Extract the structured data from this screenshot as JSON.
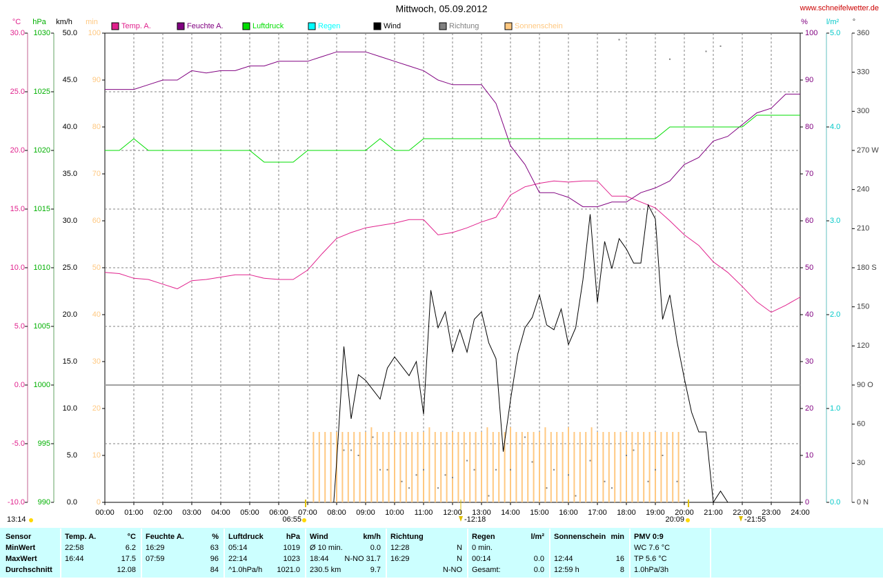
{
  "chart_data": {
    "type": "line",
    "title": "Mittwoch, 05.09.2012",
    "source": "www.schneifelwetter.de",
    "legend": "top",
    "grid": true,
    "xlim": [
      0,
      24
    ],
    "xticks": [
      {
        "value": 0,
        "label": "00:00"
      },
      {
        "value": 1,
        "label": "01:00"
      },
      {
        "value": 2,
        "label": "02:00"
      },
      {
        "value": 3,
        "label": "03:00"
      },
      {
        "value": 4,
        "label": "04:00"
      },
      {
        "value": 5,
        "label": "05:00"
      },
      {
        "value": 6,
        "label": "06:00"
      },
      {
        "value": 7,
        "label": "07:00"
      },
      {
        "value": 8,
        "label": "08:00"
      },
      {
        "value": 9,
        "label": "09:00"
      },
      {
        "value": 10,
        "label": "10:00"
      },
      {
        "value": 11,
        "label": "11:00"
      },
      {
        "value": 12,
        "label": "12:00"
      },
      {
        "value": 13,
        "label": "13:00"
      },
      {
        "value": 14,
        "label": "14:00"
      },
      {
        "value": 15,
        "label": "15:00"
      },
      {
        "value": 16,
        "label": "16:00"
      },
      {
        "value": 17,
        "label": "17:00"
      },
      {
        "value": 18,
        "label": "18:00"
      },
      {
        "value": 19,
        "label": "19:00"
      },
      {
        "value": 20,
        "label": "20:00"
      },
      {
        "value": 21,
        "label": "21:00"
      },
      {
        "value": 22,
        "label": "22:00"
      },
      {
        "value": 23,
        "label": "23:00"
      },
      {
        "value": 24,
        "label": "24:00"
      }
    ],
    "axes": [
      {
        "unit": "°C",
        "color": "#e0208c",
        "lim": [
          -10,
          30
        ],
        "ticks": [
          {
            "value": -10,
            "label": "-10.0"
          },
          {
            "value": -5,
            "label": "-5.0"
          },
          {
            "value": 0,
            "label": "0.0"
          },
          {
            "value": 5,
            "label": "5.0"
          },
          {
            "value": 10,
            "label": "10.0"
          },
          {
            "value": 15,
            "label": "15.0"
          },
          {
            "value": 20,
            "label": "20.0"
          },
          {
            "value": 25,
            "label": "25.0"
          },
          {
            "value": 30,
            "label": "30.0"
          }
        ]
      },
      {
        "unit": "hPa",
        "color": "#00b000",
        "lim": [
          990,
          1030
        ],
        "ticks": [
          990,
          995,
          1000,
          1005,
          1010,
          1015,
          1020,
          1025,
          1030
        ]
      },
      {
        "unit": "km/h",
        "color": "#000000",
        "lim": [
          0,
          50
        ],
        "ticks": [
          {
            "value": 0,
            "label": "0.0"
          },
          {
            "value": 5,
            "label": "5.0"
          },
          {
            "value": 10,
            "label": "10.0"
          },
          {
            "value": 15,
            "label": "15.0"
          },
          {
            "value": 20,
            "label": "20.0"
          },
          {
            "value": 25,
            "label": "25.0"
          },
          {
            "value": 30,
            "label": "30.0"
          },
          {
            "value": 35,
            "label": "35.0"
          },
          {
            "value": 40,
            "label": "40.0"
          },
          {
            "value": 45,
            "label": "45.0"
          },
          {
            "value": 50,
            "label": "50.0"
          }
        ]
      },
      {
        "unit": "min",
        "color": "#ffc880",
        "lim": [
          0,
          100
        ],
        "ticks": [
          0,
          10,
          20,
          30,
          40,
          50,
          60,
          70,
          80,
          90,
          100
        ]
      },
      {
        "unit": "%",
        "color": "#800080",
        "lim": [
          0,
          100
        ],
        "ticks": [
          0,
          10,
          20,
          30,
          40,
          50,
          60,
          70,
          80,
          90,
          100
        ]
      },
      {
        "unit": "l/m²",
        "color": "#00c8c8",
        "lim": [
          0,
          5
        ],
        "ticks": [
          {
            "value": 0,
            "label": "0.0"
          },
          {
            "value": 1,
            "label": "1.0"
          },
          {
            "value": 2,
            "label": "2.0"
          },
          {
            "value": 3,
            "label": "3.0"
          },
          {
            "value": 4,
            "label": "4.0"
          },
          {
            "value": 5,
            "label": "5.0"
          }
        ]
      },
      {
        "unit": "°",
        "color": "#404040",
        "lim": [
          0,
          360
        ],
        "ticks": [
          {
            "value": 0,
            "label": "0 N"
          },
          30,
          60,
          {
            "value": 90,
            "label": "90 O"
          },
          120,
          150,
          {
            "value": 180,
            "label": "180 S"
          },
          210,
          240,
          {
            "value": 270,
            "label": "270 W"
          },
          300,
          330,
          360
        ]
      }
    ],
    "x": [
      0,
      0.5,
      1,
      1.5,
      2,
      2.5,
      3,
      3.5,
      4,
      4.5,
      5,
      5.5,
      6,
      6.5,
      7,
      7.5,
      8,
      8.5,
      9,
      9.5,
      10,
      10.5,
      11,
      11.5,
      12,
      12.5,
      13,
      13.5,
      14,
      14.5,
      15,
      15.5,
      16,
      16.5,
      17,
      17.5,
      18,
      18.5,
      19,
      19.5,
      20,
      20.5,
      21,
      21.5,
      22,
      22.5,
      23,
      23.5,
      24
    ],
    "series": [
      {
        "name": "Temp. A.",
        "color": "#e0208c",
        "kind": "line",
        "axis": 0,
        "values": [
          9.6,
          9.5,
          9.1,
          9.0,
          8.6,
          8.2,
          8.9,
          9.0,
          9.2,
          9.4,
          9.4,
          9.1,
          9.0,
          9.0,
          9.8,
          11.2,
          12.5,
          13.0,
          13.4,
          13.6,
          13.8,
          14.1,
          14.1,
          12.8,
          13.0,
          13.4,
          13.9,
          14.3,
          16.2,
          16.9,
          17.2,
          17.4,
          17.3,
          17.4,
          17.4,
          16.1,
          16.1,
          15.6,
          15.1,
          14.0,
          12.8,
          11.9,
          10.5,
          9.6,
          8.4,
          7.1,
          6.2,
          6.8,
          7.5
        ]
      },
      {
        "name": "Feuchte A.",
        "color": "#800080",
        "kind": "line",
        "axis": 4,
        "values": [
          88,
          88,
          88,
          89,
          90,
          90,
          92,
          91.5,
          92,
          92,
          93,
          93,
          94,
          94,
          94,
          95,
          96,
          96,
          96,
          95,
          94,
          93,
          92,
          90,
          89,
          89,
          89,
          85,
          76,
          72,
          66,
          66,
          65,
          63,
          63,
          64,
          64,
          66,
          67,
          68.5,
          72,
          73.5,
          77,
          78,
          80.5,
          83,
          84,
          87,
          87
        ]
      },
      {
        "name": "Luftdruck",
        "color": "#00dd00",
        "kind": "line",
        "axis": 1,
        "values": [
          1020,
          1020,
          1021,
          1020,
          1020,
          1020,
          1020,
          1020,
          1020,
          1020,
          1020,
          1019,
          1019,
          1019,
          1020,
          1020,
          1020,
          1020,
          1020,
          1021,
          1020,
          1020,
          1021,
          1021,
          1021,
          1021,
          1021,
          1021,
          1021,
          1021,
          1021,
          1021,
          1021,
          1021,
          1021,
          1021,
          1021,
          1021,
          1021,
          1022,
          1022,
          1022,
          1022,
          1022,
          1022,
          1023,
          1023,
          1023,
          1023
        ]
      },
      {
        "name": "Regen",
        "color": "#00ffff",
        "kind": "bars",
        "axis": 5,
        "x": [],
        "values": []
      },
      {
        "name": "Wind",
        "color": "#000000",
        "kind": "line",
        "axis": 2,
        "x": [
          7.9,
          8,
          8.25,
          8.5,
          8.75,
          9,
          9.25,
          9.5,
          9.75,
          10,
          10.25,
          10.5,
          10.75,
          11,
          11.25,
          11.5,
          11.75,
          12,
          12.25,
          12.5,
          12.75,
          13,
          13.25,
          13.5,
          13.75,
          14,
          14.25,
          14.5,
          14.75,
          15,
          15.25,
          15.5,
          15.75,
          16,
          16.25,
          16.5,
          16.75,
          17,
          17.25,
          17.5,
          17.75,
          18,
          18.25,
          18.5,
          18.75,
          19,
          19.25,
          19.5,
          19.75,
          20,
          20.25,
          20.5,
          20.75,
          21,
          21.25,
          21.5
        ],
        "values": [
          0,
          4.3,
          16.6,
          8.9,
          13.6,
          13.0,
          12.0,
          11.0,
          14.3,
          15.5,
          14.5,
          13.5,
          15.0,
          9.4,
          22.6,
          18.6,
          20.3,
          16.0,
          18.4,
          16.0,
          19.5,
          20.3,
          17.0,
          15.3,
          5.4,
          10.9,
          15.8,
          18.6,
          19.7,
          22.1,
          18.9,
          18.4,
          20.6,
          16.8,
          18.6,
          23.7,
          30.7,
          21.3,
          27.8,
          24.9,
          28.1,
          27.0,
          25.5,
          25.5,
          31.7,
          30.2,
          19.5,
          22.1,
          17.1,
          13.2,
          9.6,
          7.5,
          7.5,
          0.0,
          1.2,
          0.0
        ]
      },
      {
        "name": "Richtung",
        "color": "#808080",
        "kind": "dots",
        "axis": 6,
        "x": [
          8.25,
          8.5,
          8.75,
          9.25,
          9.5,
          9.75,
          10.25,
          10.5,
          10.75,
          11,
          11.5,
          11.75,
          12,
          12.5,
          12.75,
          13.25,
          13.5,
          14,
          14.5,
          14.75,
          15.25,
          15.5,
          16,
          16.25,
          16.75,
          17.25,
          17.5,
          17.75,
          18,
          18.25,
          18.75,
          19,
          19.25,
          19.5,
          19.75,
          20.75,
          21.25
        ],
        "values": [
          40,
          40,
          36,
          50,
          25,
          25,
          16,
          11,
          21,
          25,
          11,
          21,
          19,
          32,
          25,
          5,
          25,
          25,
          50,
          31,
          11,
          25,
          21,
          5,
          32,
          16,
          11,
          355,
          36,
          40,
          16,
          25,
          36,
          340,
          16,
          346,
          350
        ]
      },
      {
        "name": "Sonnenschein",
        "color": "#ffc880",
        "kind": "bars",
        "axis": 3,
        "x": [
          7.2,
          7.4,
          7.6,
          7.8,
          8,
          8.2,
          8.4,
          8.6,
          8.8,
          9,
          9.2,
          9.4,
          9.6,
          9.8,
          10,
          10.2,
          10.4,
          10.6,
          10.8,
          11,
          11.2,
          11.4,
          11.6,
          11.8,
          12,
          12.2,
          12.4,
          12.6,
          12.8,
          13,
          13.2,
          13.4,
          13.6,
          13.8,
          14,
          14.2,
          14.4,
          14.6,
          14.8,
          15,
          15.2,
          15.4,
          15.6,
          15.8,
          16,
          16.2,
          16.4,
          16.6,
          16.8,
          17,
          17.2,
          17.4,
          17.6,
          17.8,
          18,
          18.2,
          18.4,
          18.6,
          18.8,
          19,
          19.2,
          19.4,
          19.6,
          19.8
        ],
        "values": [
          15,
          15,
          15,
          15,
          15,
          15,
          15,
          15,
          15,
          15,
          16,
          15,
          15,
          15,
          15,
          15,
          15,
          15,
          15,
          15,
          16,
          15,
          15,
          15,
          15,
          15,
          15,
          15,
          15,
          15,
          16,
          15,
          15,
          15,
          16,
          15,
          15,
          15,
          15,
          15,
          16,
          15,
          15,
          15,
          16,
          15,
          15,
          15,
          16,
          15,
          15,
          15,
          15,
          15,
          15,
          15,
          15,
          15,
          15,
          15,
          15,
          15,
          15,
          15
        ]
      }
    ],
    "annotations": [
      "13:14",
      "06:55",
      "-12:18",
      "20:09",
      "-21:55"
    ]
  },
  "table": {
    "corner": "Sensor",
    "columns": [
      {
        "name": "Temp. A.",
        "unit": "°C"
      },
      {
        "name": "Feuchte A.",
        "unit": "%"
      },
      {
        "name": "Luftdruck",
        "unit": "hPa"
      },
      {
        "name": "Wind",
        "unit": "km/h"
      },
      {
        "name": "Richtung"
      },
      {
        "name": "Regen",
        "unit": "l/m²"
      },
      {
        "name": "Sonnenschein",
        "unit": "min"
      },
      {
        "name": "PMV 0:9"
      }
    ],
    "rows": [
      {
        "label": "MinWert",
        "cells": [
          [
            "22:58",
            "6.2"
          ],
          [
            "16:29",
            "63"
          ],
          [
            "05:14",
            "1019"
          ],
          [
            "Ø 10 min.",
            "0.0"
          ],
          [
            "12:28",
            "N"
          ],
          [
            "0 min."
          ],
          [],
          [
            "WC 7.6 °C"
          ]
        ]
      },
      {
        "label": "MaxWert",
        "cells": [
          [
            "16:44",
            "17.5"
          ],
          [
            "07:59",
            "96"
          ],
          [
            "22:14",
            "1023"
          ],
          [
            "18:44",
            "N-NO 31.7"
          ],
          [
            "16:29",
            "N"
          ],
          [
            "00:14",
            "0.0"
          ],
          [
            "12:44",
            "16"
          ],
          [
            "TP 5.6 °C"
          ]
        ]
      },
      {
        "label": "Durchschnitt",
        "cells": [
          [
            "12.08"
          ],
          [
            "84"
          ],
          [
            "^1.0hPa/h",
            "1021.0"
          ],
          [
            "230.5 km",
            "9.7"
          ],
          [
            "N-NO"
          ],
          [
            "Gesamt:",
            "0.0"
          ],
          [
            "12:59 h",
            "8"
          ],
          [
            "1.0hPa/3h"
          ]
        ]
      }
    ]
  }
}
